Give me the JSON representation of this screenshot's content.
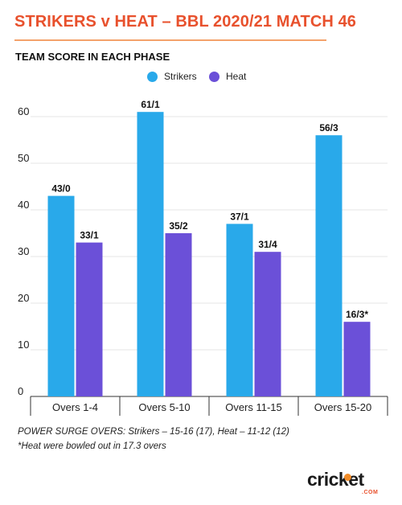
{
  "header": {
    "title": "STRIKERS v HEAT – BBL 2020/21 MATCH 46",
    "subtitle": "TEAM SCORE IN EACH PHASE"
  },
  "footnotes": {
    "power_surge": "POWER SURGE OVERS: Strikers – 15-16 (17), Heat – 11-12 (12)",
    "heat_note": "*Heat were bowled out in 17.3 overs"
  },
  "logo": {
    "text": "cricket",
    "sub": ".COM"
  },
  "colors": {
    "title": "#e8512d",
    "strikers": "#29a9ea",
    "heat": "#6b50d8",
    "grid": "#e4e4e4"
  },
  "chart_data": {
    "type": "bar",
    "title": "TEAM SCORE IN EACH PHASE",
    "categories": [
      "Overs 1-4",
      "Overs 5-10",
      "Overs 11-15",
      "Overs 15-20"
    ],
    "series": [
      {
        "name": "Strikers",
        "color": "#29a9ea",
        "values": [
          43,
          61,
          37,
          56
        ],
        "labels": [
          "43/0",
          "61/1",
          "37/1",
          "56/3"
        ]
      },
      {
        "name": "Heat",
        "color": "#6b50d8",
        "values": [
          33,
          35,
          31,
          16
        ],
        "labels": [
          "33/1",
          "35/2",
          "31/4",
          "16/3*"
        ]
      }
    ],
    "yticks": [
      0,
      10,
      20,
      30,
      40,
      50,
      60
    ],
    "ylim": [
      0,
      60
    ],
    "grid": true,
    "legend": "top-center"
  }
}
